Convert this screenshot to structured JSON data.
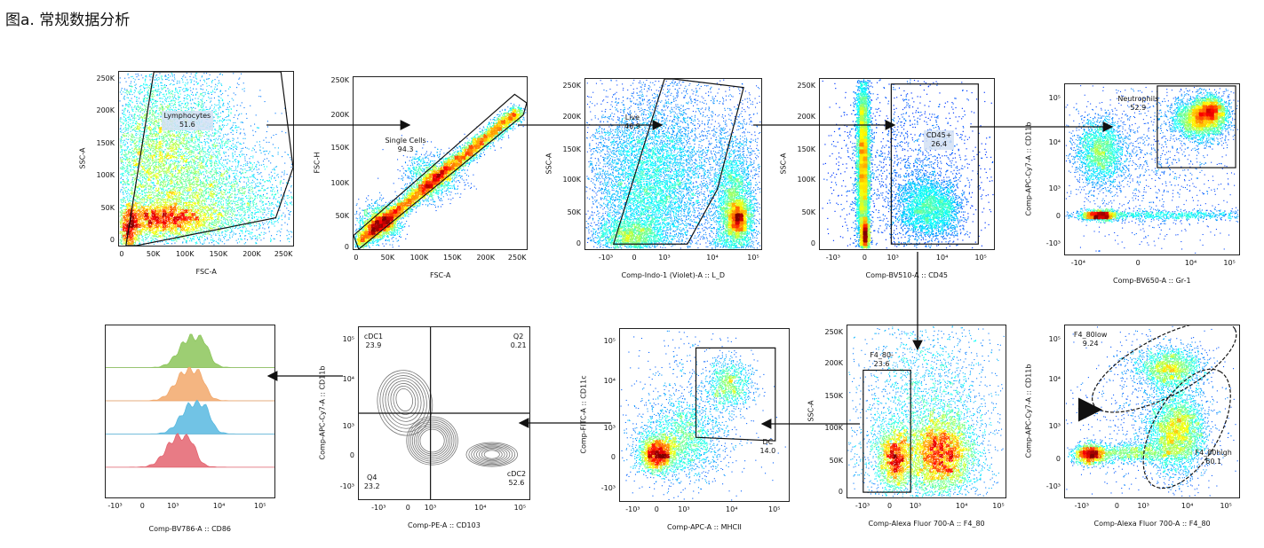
{
  "title": "图a. 常规数据分析",
  "colors": {
    "arrow": "#111111",
    "gate": "#111111",
    "contour": "#777777",
    "histogram_fills": [
      "#8cc65a",
      "#f2a86b",
      "#58b9e0",
      "#e46470"
    ]
  },
  "chart_data": [
    {
      "id": "lymphocytes",
      "type": "scatter",
      "xlabel": "FSC-A",
      "ylabel": "SSC-A",
      "x_ticks": [
        "0",
        "50K",
        "100K",
        "150K",
        "200K",
        "250K"
      ],
      "y_ticks": [
        "250K",
        "200K",
        "150K",
        "100K",
        "50K",
        "0"
      ],
      "xlim": [
        0,
        262144
      ],
      "ylim": [
        0,
        262144
      ],
      "gates": [
        {
          "name": "Lymphocytes",
          "percent": "51.6"
        }
      ]
    },
    {
      "id": "single-cells",
      "type": "scatter",
      "xlabel": "FSC-A",
      "ylabel": "FSC-H",
      "x_ticks": [
        "0",
        "50K",
        "100K",
        "150K",
        "200K",
        "250K"
      ],
      "y_ticks": [
        "250K",
        "200K",
        "150K",
        "100K",
        "50K",
        "0"
      ],
      "gates": [
        {
          "name": "Single Cells",
          "percent": "94.3"
        }
      ]
    },
    {
      "id": "live",
      "type": "scatter",
      "xlabel": "Comp-Indo-1 (Violet)-A :: L_D",
      "ylabel": "SSC-A",
      "x_ticks": [
        "-10³",
        "0",
        "10³",
        "10⁴",
        "10⁵"
      ],
      "y_ticks": [
        "250K",
        "200K",
        "150K",
        "100K",
        "50K",
        "0"
      ],
      "gates": [
        {
          "name": "Live",
          "percent": "46.9"
        }
      ]
    },
    {
      "id": "cd45",
      "type": "scatter",
      "xlabel": "Comp-BV510-A :: CD45",
      "ylabel": "SSC-A",
      "x_ticks": [
        "-10³",
        "0",
        "10³",
        "10⁴",
        "10⁵"
      ],
      "y_ticks": [
        "250K",
        "200K",
        "150K",
        "100K",
        "50K",
        "0"
      ],
      "gates": [
        {
          "name": "CD45+",
          "percent": "26.4"
        }
      ]
    },
    {
      "id": "neutrophils",
      "type": "scatter",
      "xlabel": "Comp-BV650-A :: Gr-1",
      "ylabel": "Comp-APC-Cy7-A :: CD11b",
      "x_ticks": [
        "-10⁴",
        "0",
        "10⁴",
        "10⁵"
      ],
      "y_ticks": [
        "10⁵",
        "10⁴",
        "10³",
        "0",
        "-10³"
      ],
      "gates": [
        {
          "name": "Neutrophils",
          "percent": "52.9"
        }
      ]
    },
    {
      "id": "f4-80-cd11b",
      "type": "scatter",
      "xlabel": "Comp-Alexa Fluor 700-A :: F4_80",
      "ylabel": "Comp-APC-Cy7-A :: CD11b",
      "x_ticks": [
        "-10³",
        "0",
        "10³",
        "10⁴",
        "10⁵"
      ],
      "y_ticks": [
        "10⁵",
        "10⁴",
        "10³",
        "0",
        "-10³"
      ],
      "gates": [
        {
          "name": "F4_80low",
          "percent": "9.24"
        },
        {
          "name": "F4_80high",
          "percent": "60.1"
        }
      ]
    },
    {
      "id": "f4-80-ssc",
      "type": "scatter",
      "xlabel": "Comp-Alexa Fluor 700-A :: F4_80",
      "ylabel": "SSC-A",
      "x_ticks": [
        "-10³",
        "0",
        "10³",
        "10⁴",
        "10⁵"
      ],
      "y_ticks": [
        "250K",
        "200K",
        "150K",
        "100K",
        "50K",
        "0"
      ],
      "gates": [
        {
          "name": "F4_80-",
          "percent": "23.6"
        }
      ]
    },
    {
      "id": "dc",
      "type": "scatter",
      "xlabel": "Comp-APC-A :: MHCII",
      "ylabel": "Comp-FITC-A :: CD11c",
      "x_ticks": [
        "-10³",
        "0",
        "10³",
        "10⁴",
        "10⁵"
      ],
      "y_ticks": [
        "10⁵",
        "10⁴",
        "10³",
        "0",
        "-10³"
      ],
      "gates": [
        {
          "name": "DC",
          "percent": "14.0"
        }
      ]
    },
    {
      "id": "quadrant",
      "type": "contour",
      "xlabel": "Comp-PE-A :: CD103",
      "ylabel": "Comp-APC-Cy7-A :: CD11b",
      "x_ticks": [
        "-10³",
        "0",
        "10³",
        "10⁴",
        "10⁵"
      ],
      "y_ticks": [
        "10⁵",
        "10⁴",
        "10³",
        "0",
        "-10³"
      ],
      "gates": [
        {
          "name": "cDC1",
          "percent": "23.9"
        },
        {
          "name": "Q2",
          "percent": "0.21"
        },
        {
          "name": "Q4",
          "percent": "23.2"
        },
        {
          "name": "cDC2",
          "percent": "52.6"
        }
      ]
    },
    {
      "id": "cd86-histogram",
      "type": "histogram",
      "xlabel": "Comp-BV786-A :: CD86",
      "x_ticks": [
        "-10³",
        "0",
        "10³",
        "10⁴",
        "10⁵"
      ],
      "series": [
        {
          "color": "#8cc65a",
          "peak": 2.25
        },
        {
          "color": "#f2a86b",
          "peak": 2.15
        },
        {
          "color": "#58b9e0",
          "peak": 2.3
        },
        {
          "color": "#e46470",
          "peak": 1.9
        }
      ]
    }
  ]
}
